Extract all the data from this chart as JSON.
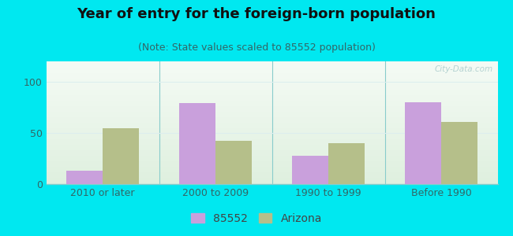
{
  "title": "Year of entry for the foreign-born population",
  "subtitle": "(Note: State values scaled to 85552 population)",
  "categories": [
    "2010 or later",
    "2000 to 2009",
    "1990 to 1999",
    "Before 1990"
  ],
  "series_85552": [
    13,
    79,
    28,
    80
  ],
  "series_arizona": [
    55,
    42,
    40,
    61
  ],
  "bar_color_85552": "#c9a0dc",
  "bar_color_arizona": "#b5bf8a",
  "background_outer": "#00e8f0",
  "background_inner_top": "#e8f5e8",
  "background_inner_bottom": "#f8fff8",
  "ylim": [
    0,
    120
  ],
  "yticks": [
    0,
    50,
    100
  ],
  "bar_width": 0.32,
  "legend_label_85552": "85552",
  "legend_label_arizona": "Arizona",
  "title_fontsize": 13,
  "subtitle_fontsize": 9,
  "tick_fontsize": 9,
  "legend_fontsize": 10,
  "separator_color": "#88cccc",
  "grid_color": "#ddeeee",
  "spine_color": "#88cccc"
}
